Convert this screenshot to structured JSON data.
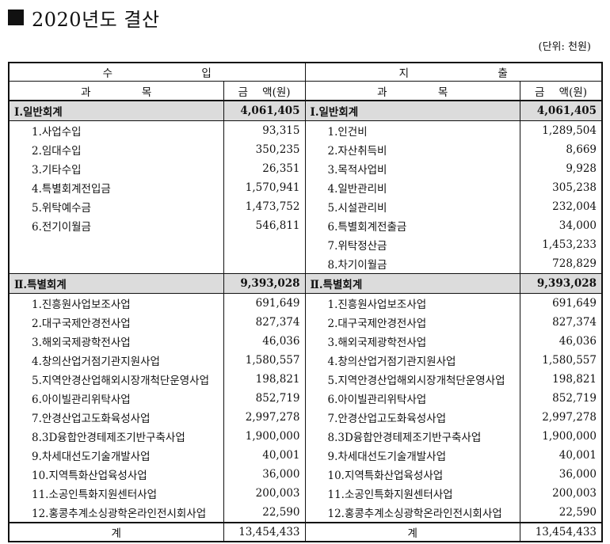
{
  "title": "2020년도 결산",
  "unit": "(단위: 천원)",
  "header": {
    "income": "수  입",
    "expense": "지  출",
    "subject": "과 목",
    "amount": "금  액(원)"
  },
  "sections": [
    {
      "income_label": "Ⅰ.일반회계",
      "income_total": "4,061,405",
      "expense_label": "Ⅰ.일반회계",
      "expense_total": "4,061,405",
      "rows": [
        {
          "in_name": "1.사업수입",
          "in_amt": "93,315",
          "ex_name": "1.인건비",
          "ex_amt": "1,289,504"
        },
        {
          "in_name": "2.임대수입",
          "in_amt": "350,235",
          "ex_name": "2.자산취득비",
          "ex_amt": "8,669"
        },
        {
          "in_name": "3.기타수입",
          "in_amt": "26,351",
          "ex_name": "3.목적사업비",
          "ex_amt": "9,928"
        },
        {
          "in_name": "4.특별회계전입금",
          "in_amt": "1,570,941",
          "ex_name": "4.일반관리비",
          "ex_amt": "305,238"
        },
        {
          "in_name": "5.위탁예수금",
          "in_amt": "1,473,752",
          "ex_name": "5.시설관리비",
          "ex_amt": "232,004"
        },
        {
          "in_name": "6.전기이월금",
          "in_amt": "546,811",
          "ex_name": "6.특별회계전출금",
          "ex_amt": "34,000"
        },
        {
          "in_name": "",
          "in_amt": "",
          "ex_name": "7.위탁정산금",
          "ex_amt": "1,453,233"
        },
        {
          "in_name": "",
          "in_amt": "",
          "ex_name": "8.차기이월금",
          "ex_amt": "728,829"
        }
      ]
    },
    {
      "income_label": "Ⅱ.특별회계",
      "income_total": "9,393,028",
      "expense_label": "Ⅱ.특별회계",
      "expense_total": "9,393,028",
      "rows": [
        {
          "in_name": "1.진흥원사업보조사업",
          "in_amt": "691,649",
          "ex_name": "1.진흥원사업보조사업",
          "ex_amt": "691,649"
        },
        {
          "in_name": "2.대구국제안경전사업",
          "in_amt": "827,374",
          "ex_name": "2.대구국제안경전사업",
          "ex_amt": "827,374"
        },
        {
          "in_name": "3.해외국제광학전사업",
          "in_amt": "46,036",
          "ex_name": "3.해외국제광학전사업",
          "ex_amt": "46,036"
        },
        {
          "in_name": "4.창의산업거점기관지원사업",
          "in_amt": "1,580,557",
          "ex_name": "4.창의산업거점기관지원사업",
          "ex_amt": "1,580,557"
        },
        {
          "in_name": "5.지역안경산업해외시장개척단운영사업",
          "in_amt": "198,821",
          "ex_name": "5.지역안경산업해외시장개척단운영사업",
          "ex_amt": "198,821"
        },
        {
          "in_name": "6.아이빌관리위탁사업",
          "in_amt": "852,719",
          "ex_name": "6.아이빌관리위탁사업",
          "ex_amt": "852,719"
        },
        {
          "in_name": "7.안경산업고도화육성사업",
          "in_amt": "2,997,278",
          "ex_name": "7.안경산업고도화육성사업",
          "ex_amt": "2,997,278"
        },
        {
          "in_name": "8.3D융합안경테제조기반구축사업",
          "in_amt": "1,900,000",
          "ex_name": "8.3D융합안경테제조기반구축사업",
          "ex_amt": "1,900,000"
        },
        {
          "in_name": "9.차세대선도기술개발사업",
          "in_amt": "40,001",
          "ex_name": "9.차세대선도기술개발사업",
          "ex_amt": "40,001"
        },
        {
          "in_name": "10.지역특화산업육성사업",
          "in_amt": "36,000",
          "ex_name": "10.지역특화산업육성사업",
          "ex_amt": "36,000"
        },
        {
          "in_name": "11.소공인특화지원센터사업",
          "in_amt": "200,003",
          "ex_name": "11.소공인특화지원센터사업",
          "ex_amt": "200,003"
        },
        {
          "in_name": "12.홍콩추계소싱광학온라인전시회사업",
          "in_amt": "22,590",
          "ex_name": "12.홍콩추계소싱광학온라인전시회사업",
          "ex_amt": "22,590"
        }
      ]
    }
  ],
  "total": {
    "label": "계",
    "income_total": "13,454,433",
    "expense_total": "13,454,433"
  }
}
